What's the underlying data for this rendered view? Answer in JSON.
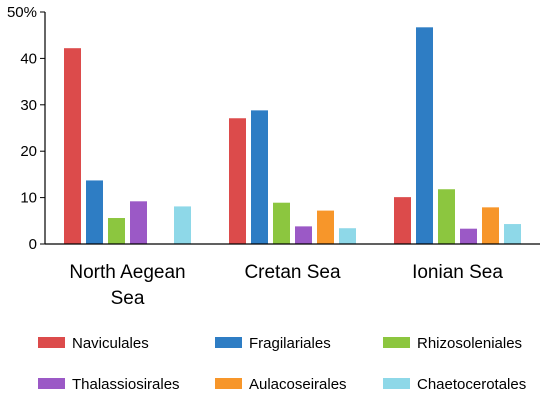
{
  "chart_data": {
    "type": "bar",
    "categories": [
      [
        "North Aegean",
        "Sea"
      ],
      [
        "Cretan Sea"
      ],
      [
        "Ionian Sea"
      ]
    ],
    "series": [
      {
        "name": "Naviculales",
        "color": "#dc4b4b",
        "values": [
          42.2,
          27.1,
          10.1
        ]
      },
      {
        "name": "Fragilariales",
        "color": "#2e7dc4",
        "values": [
          13.7,
          28.8,
          46.7
        ]
      },
      {
        "name": "Rhizosoleniales",
        "color": "#8cc63f",
        "values": [
          5.6,
          8.9,
          11.8
        ]
      },
      {
        "name": "Thalassiosirales",
        "color": "#9b59c6",
        "values": [
          9.2,
          3.8,
          3.3
        ]
      },
      {
        "name": "Aulacoseirales",
        "color": "#f7962a",
        "values": [
          null,
          7.2,
          7.9
        ]
      },
      {
        "name": "Chaetocerotales",
        "color": "#8ed8e8",
        "values": [
          8.1,
          3.4,
          4.3
        ]
      }
    ],
    "yticks": [
      "0",
      "10",
      "20",
      "30",
      "40",
      "50%"
    ],
    "ylim": [
      0,
      50
    ],
    "grid": false,
    "legend_position": "bottom"
  }
}
